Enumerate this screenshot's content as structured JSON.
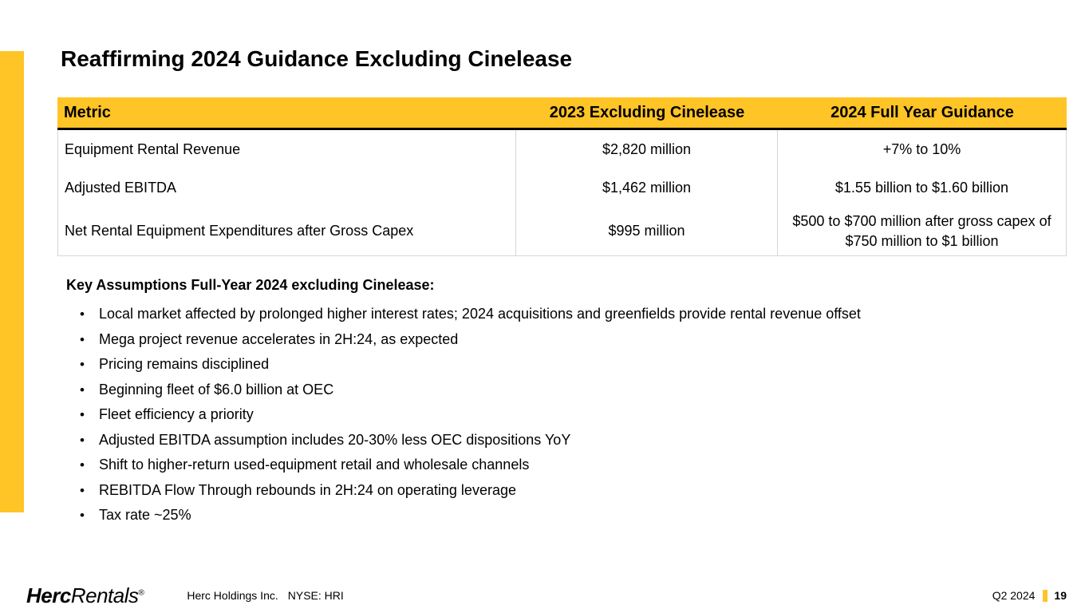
{
  "slide": {
    "title": "Reaffirming 2024 Guidance Excluding Cinelease"
  },
  "table": {
    "headers": [
      "Metric",
      "2023 Excluding Cinelease",
      "2024 Full Year Guidance"
    ],
    "rows": [
      [
        "Equipment Rental Revenue",
        "$2,820 million",
        "+7% to 10%"
      ],
      [
        "Adjusted EBITDA",
        "$1,462 million",
        "$1.55 billion to $1.60 billion"
      ],
      [
        "Net Rental Equipment Expenditures after Gross Capex",
        "$995 million",
        "$500 to $700 million after gross capex of $750 million to $1 billion"
      ]
    ]
  },
  "assumptions": {
    "heading": "Key Assumptions Full-Year 2024 excluding Cinelease:",
    "bullet_char": "•",
    "bullets": [
      "Local market affected by prolonged higher interest rates; 2024 acquisitions and greenfields provide rental revenue offset",
      "Mega project revenue accelerates in 2H:24, as expected",
      "Pricing remains disciplined",
      "Beginning fleet of $6.0 billion at OEC",
      "Fleet efficiency a priority",
      "Adjusted EBITDA assumption includes 20-30% less OEC dispositions YoY",
      "Shift to higher-return used-equipment retail and wholesale channels",
      "REBITDA Flow Through rebounds in 2H:24 on operating leverage",
      "Tax rate ~25%"
    ]
  },
  "footer": {
    "logo_herc": "Herc",
    "logo_rentals": "Rentals",
    "logo_reg": "®",
    "company": "Herc Holdings Inc.",
    "ticker": "NYSE: HRI",
    "quarter": "Q2 2024",
    "page": "19"
  },
  "colors": {
    "brand_yellow": "#FFC425"
  }
}
